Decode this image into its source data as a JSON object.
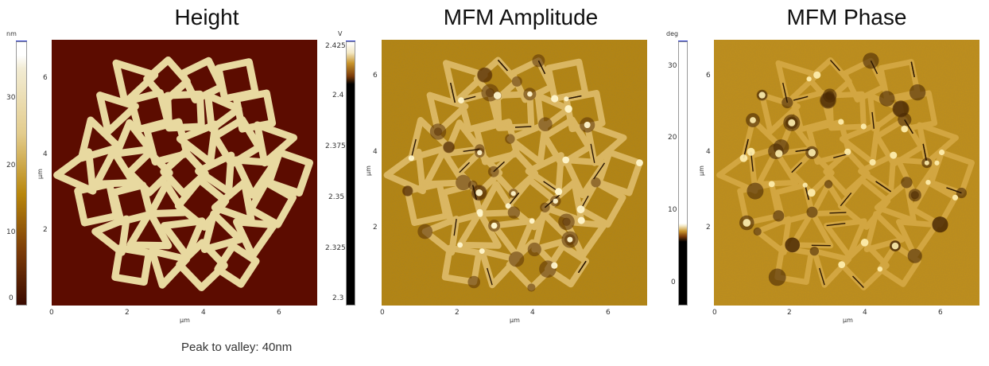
{
  "panels": [
    {
      "title": "Height",
      "colorbar_unit": "nm",
      "colorbar_ticks": [
        "30",
        "20",
        "10",
        "0"
      ],
      "y_ticks": [
        "6",
        "4",
        "2",
        "0"
      ],
      "x_ticks": [
        "0",
        "2",
        "4",
        "6"
      ],
      "x_unit": "µm",
      "y_unit": "µm"
    },
    {
      "title": "MFM Amplitude",
      "colorbar_unit": "V",
      "colorbar_ticks": [
        "2.425",
        "2.4",
        "2.375",
        "2.35",
        "2.325",
        "2.3"
      ],
      "y_ticks": [
        "6",
        "4",
        "2",
        "0"
      ],
      "x_ticks": [
        "0",
        "2",
        "4",
        "6"
      ],
      "x_unit": "µm",
      "y_unit": "µm"
    },
    {
      "title": "MFM Phase",
      "colorbar_unit": "deg",
      "colorbar_ticks": [
        "30",
        "20",
        "10",
        "0"
      ],
      "y_ticks": [
        "6",
        "4",
        "2",
        "0"
      ],
      "x_ticks": [
        "0",
        "2",
        "4",
        "6"
      ],
      "x_unit": "µm",
      "y_unit": "µm"
    }
  ],
  "caption": "Peak to valley: 40nm",
  "colors": {
    "height_background": "#5c0c00",
    "height_feature": "#e8d9a0",
    "mfm_background": "#b8860b",
    "mfm_dark": "#4a2a05",
    "mfm_bright": "#fff4c0"
  }
}
